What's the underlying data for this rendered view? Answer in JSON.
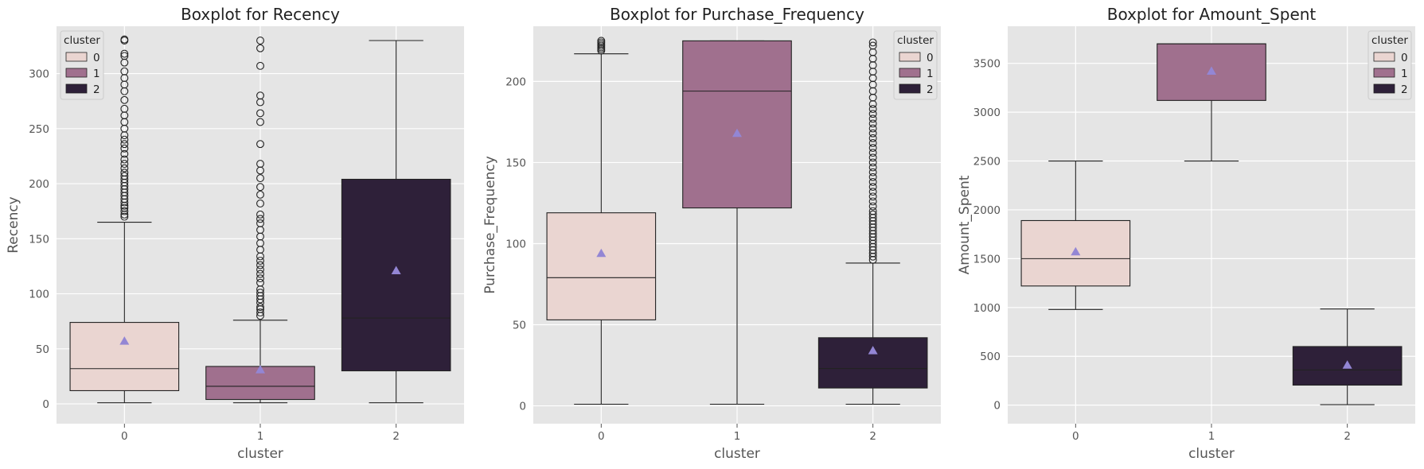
{
  "colors": {
    "panel_bg": "#E5E5E5",
    "grid": "#FFFFFF",
    "cluster_0": "#EAD5D1",
    "cluster_1": "#A0708E",
    "cluster_2": "#2E2039",
    "mean_marker": "#9386D4",
    "line": "#222222"
  },
  "chart_data": [
    {
      "type": "box",
      "title": "Boxplot for Recency",
      "xlabel": "cluster",
      "ylabel": "Recency",
      "categories": [
        "0",
        "1",
        "2"
      ],
      "ylim": [
        -18,
        343
      ],
      "yticks": [
        0,
        50,
        100,
        150,
        200,
        250,
        300
      ],
      "legend": {
        "title": "cluster",
        "position": "top-left",
        "entries": [
          "0",
          "1",
          "2"
        ]
      },
      "boxes": [
        {
          "cluster": "0",
          "whisker_low": 1,
          "q1": 12,
          "median": 32,
          "q3": 74,
          "whisker_high": 165,
          "mean": 57,
          "outliers": [
            170,
            172,
            175,
            178,
            180,
            183,
            186,
            189,
            192,
            195,
            198,
            201,
            204,
            207,
            210,
            214,
            218,
            222,
            227,
            232,
            236,
            240,
            244,
            250,
            256,
            262,
            268,
            276,
            284,
            290,
            296,
            302,
            310,
            316,
            318,
            330,
            331
          ]
        },
        {
          "cluster": "1",
          "whisker_low": 1,
          "q1": 4,
          "median": 16,
          "q3": 34,
          "whisker_high": 76,
          "mean": 31,
          "outliers": [
            80,
            83,
            86,
            88,
            92,
            95,
            98,
            101,
            104,
            110,
            114,
            118,
            122,
            126,
            130,
            134,
            140,
            146,
            152,
            158,
            164,
            168,
            172,
            182,
            190,
            197,
            205,
            212,
            218,
            236,
            256,
            264,
            274,
            280,
            307,
            323,
            330
          ]
        },
        {
          "cluster": "2",
          "whisker_low": 1,
          "q1": 30,
          "median": 78,
          "q3": 204,
          "whisker_high": 330,
          "mean": 121,
          "outliers": []
        }
      ]
    },
    {
      "type": "box",
      "title": "Boxplot for Purchase_Frequency",
      "xlabel": "cluster",
      "ylabel": "Purchase_Frequency",
      "categories": [
        "0",
        "1",
        "2"
      ],
      "ylim": [
        -11,
        234
      ],
      "yticks": [
        0,
        50,
        100,
        150,
        200
      ],
      "legend": {
        "title": "cluster",
        "position": "top-right",
        "entries": [
          "0",
          "1",
          "2"
        ]
      },
      "boxes": [
        {
          "cluster": "0",
          "whisker_low": 1,
          "q1": 53,
          "median": 79,
          "q3": 119,
          "whisker_high": 217,
          "mean": 94,
          "outliers": [
            219,
            220,
            221,
            222,
            223,
            224,
            225
          ]
        },
        {
          "cluster": "1",
          "whisker_low": 1,
          "q1": 122,
          "median": 194,
          "q3": 225,
          "whisker_high": 225,
          "mean": 168,
          "outliers": []
        },
        {
          "cluster": "2",
          "whisker_low": 1,
          "q1": 11,
          "median": 23,
          "q3": 42,
          "whisker_high": 88,
          "mean": 34,
          "outliers": [
            90,
            92,
            94,
            96,
            98,
            100,
            102,
            104,
            106,
            108,
            110,
            112,
            114,
            116,
            118,
            120,
            123,
            126,
            129,
            132,
            135,
            138,
            141,
            144,
            147,
            150,
            153,
            156,
            159,
            162,
            165,
            168,
            171,
            174,
            177,
            180,
            183,
            186,
            190,
            194,
            198,
            202,
            206,
            210,
            214,
            218,
            222,
            224
          ]
        }
      ]
    },
    {
      "type": "box",
      "title": "Boxplot for Amount_Spent",
      "xlabel": "cluster",
      "ylabel": "Amount_Spent",
      "categories": [
        "0",
        "1",
        "2"
      ],
      "ylim": [
        -190,
        3880
      ],
      "yticks": [
        0,
        500,
        1000,
        1500,
        2000,
        2500,
        3000,
        3500
      ],
      "legend": {
        "title": "cluster",
        "position": "top-right",
        "entries": [
          "0",
          "1",
          "2"
        ]
      },
      "boxes": [
        {
          "cluster": "0",
          "whisker_low": 980,
          "q1": 1220,
          "median": 1500,
          "q3": 1890,
          "whisker_high": 2500,
          "mean": 1570,
          "outliers": []
        },
        {
          "cluster": "1",
          "whisker_low": 2500,
          "q1": 3120,
          "median": 3700,
          "q3": 3700,
          "whisker_high": 3700,
          "mean": 3420,
          "outliers": []
        },
        {
          "cluster": "2",
          "whisker_low": 5,
          "q1": 205,
          "median": 360,
          "q3": 600,
          "whisker_high": 985,
          "mean": 410,
          "outliers": []
        }
      ]
    }
  ]
}
